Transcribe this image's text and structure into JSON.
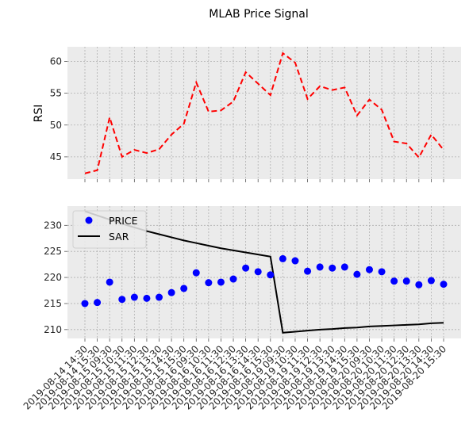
{
  "figure_title": "MLAB Price Signal",
  "colors": {
    "plot_bg": "#EBEBEB",
    "grid": "#B0B0B0",
    "rsi_line": "#FF0000",
    "price_marker": "#0000FF",
    "sar_line": "#000000"
  },
  "chart_data": [
    {
      "type": "line",
      "style": "dashed",
      "ylabel": "RSI",
      "ylim": [
        41.5,
        62.3
      ],
      "yticks": [
        45,
        50,
        55,
        60
      ],
      "grid": true,
      "x": [
        "2019-08-14 14:30",
        "2019-08-14 15:30",
        "2019-08-15 09:30",
        "2019-08-15 10:30",
        "2019-08-15 11:30",
        "2019-08-15 12:30",
        "2019-08-15 13:30",
        "2019-08-15 14:30",
        "2019-08-15 15:30",
        "2019-08-16 09:30",
        "2019-08-16 10:30",
        "2019-08-16 11:30",
        "2019-08-16 12:30",
        "2019-08-16 13:30",
        "2019-08-16 14:30",
        "2019-08-16 15:30",
        "2019-08-19 09:30",
        "2019-08-19 10:30",
        "2019-08-19 11:30",
        "2019-08-19 12:30",
        "2019-08-19 13:30",
        "2019-08-19 14:30",
        "2019-08-19 15:30",
        "2019-08-20 09:30",
        "2019-08-20 10:30",
        "2019-08-20 11:30",
        "2019-08-20 12:30",
        "2019-08-20 13:30",
        "2019-08-20 14:30",
        "2019-08-20 15:30"
      ],
      "series": [
        {
          "values": [
            42.4,
            42.9,
            51.2,
            45.0,
            46.1,
            45.6,
            46.2,
            48.5,
            50.2,
            56.7,
            52.1,
            52.3,
            53.7,
            58.3,
            56.5,
            54.7,
            61.3,
            59.8,
            54.1,
            56.1,
            55.5,
            55.9,
            51.5,
            54.0,
            52.4,
            47.4,
            47.1,
            44.9,
            48.5,
            46.1
          ]
        }
      ]
    },
    {
      "type": "line",
      "ylim": [
        208.3,
        233.7
      ],
      "yticks": [
        210,
        215,
        220,
        225,
        230
      ],
      "grid": true,
      "legend_position": "top-left",
      "series": [
        {
          "name": "PRICE",
          "kind": "scatter",
          "values": [
            215.0,
            215.2,
            219.1,
            215.8,
            216.2,
            216.0,
            216.2,
            217.1,
            217.9,
            220.9,
            219.0,
            219.1,
            219.7,
            221.8,
            221.1,
            220.5,
            223.6,
            223.2,
            221.2,
            222.0,
            221.8,
            222.0,
            220.6,
            221.5,
            221.1,
            219.3,
            219.3,
            218.6,
            219.4,
            218.7
          ]
        },
        {
          "name": "SAR",
          "kind": "line",
          "values": [
            232.7,
            231.9,
            231.1,
            230.3,
            229.6,
            228.9,
            228.3,
            227.7,
            227.1,
            226.6,
            226.1,
            225.6,
            225.2,
            224.8,
            224.4,
            224.0,
            209.4,
            209.6,
            209.8,
            210.0,
            210.1,
            210.3,
            210.4,
            210.6,
            210.7,
            210.8,
            210.9,
            211.0,
            211.2,
            211.3
          ]
        }
      ]
    }
  ]
}
